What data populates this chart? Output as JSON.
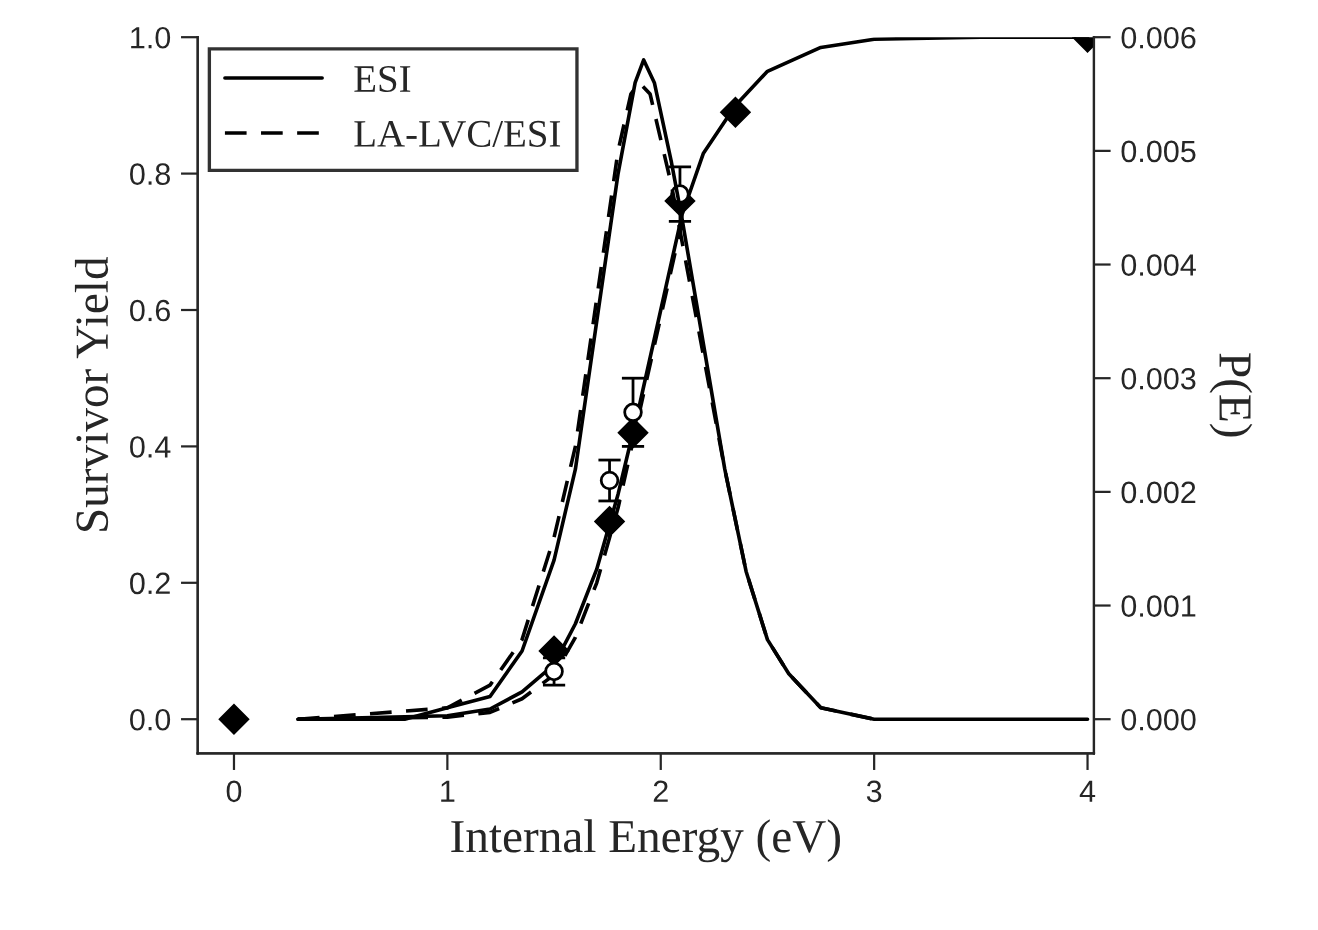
{
  "chart_data": {
    "type": "line",
    "xlabel": "Internal Energy (eV)",
    "ylabel": "Survivor Yield",
    "y2label": "P(E)",
    "xlim": [
      -0.17,
      4.03
    ],
    "xticks": [
      0,
      1,
      2,
      3,
      4
    ],
    "ylim": [
      -0.05,
      1.0
    ],
    "yticks": [
      {
        "value": 0,
        "label": "0.0"
      },
      {
        "value": 0.2,
        "label": "0.2"
      },
      {
        "value": 0.4,
        "label": "0.4"
      },
      {
        "value": 0.6,
        "label": "0.6"
      },
      {
        "value": 0.8,
        "label": "0.8"
      },
      {
        "value": 1,
        "label": "1.0"
      }
    ],
    "y2lim": [
      -0.0003,
      0.006
    ],
    "y2ticks": [
      {
        "value": 0,
        "label": "0.000"
      },
      {
        "value": 0.001,
        "label": "0.001"
      },
      {
        "value": 0.002,
        "label": "0.002"
      },
      {
        "value": 0.003,
        "label": "0.003"
      },
      {
        "value": 0.004,
        "label": "0.004"
      },
      {
        "value": 0.005,
        "label": "0.005"
      },
      {
        "value": 0.006,
        "label": "0.006"
      }
    ],
    "legend": "top left",
    "grid": false,
    "series": [
      {
        "name": "ESI",
        "axis": "y2",
        "color": "#000000",
        "line_style": "solid",
        "marker": "none",
        "x": [
          0.3,
          0.8,
          1.0,
          1.2,
          1.35,
          1.5,
          1.6,
          1.7,
          1.8,
          1.88,
          1.92,
          1.97,
          2.05,
          2.1,
          2.2,
          2.3,
          2.4,
          2.5,
          2.6,
          2.75,
          3.0,
          4.0
        ],
        "values": [
          0,
          0,
          0.0001,
          0.0002,
          0.0006,
          0.0014,
          0.0022,
          0.0035,
          0.0048,
          0.0056,
          0.0058,
          0.0056,
          0.0049,
          0.0044,
          0.0033,
          0.0022,
          0.0013,
          0.0007,
          0.0004,
          0.0001,
          0,
          0
        ]
      },
      {
        "name": "LA-LVC/ESI",
        "axis": "y2",
        "color": "#000000",
        "line_style": "dashed",
        "marker": "none",
        "x": [
          0.3,
          1.0,
          1.2,
          1.35,
          1.5,
          1.6,
          1.7,
          1.8,
          1.86,
          1.9,
          1.95,
          2.05,
          2.1,
          2.2,
          2.3,
          2.4,
          2.5,
          2.6,
          2.75,
          3.0
        ],
        "values": [
          0,
          0.0001,
          0.0003,
          0.0007,
          0.0016,
          0.0024,
          0.0037,
          0.005,
          0.0055,
          0.0056,
          0.0055,
          0.0047,
          0.0042,
          0.0032,
          0.0022,
          0.0013,
          0.0007,
          0.0004,
          0.0001,
          0
        ]
      },
      {
        "color": "#000000",
        "line_style": "solid",
        "marker": "none",
        "x": [
          0.3,
          1.0,
          1.2,
          1.35,
          1.5,
          1.6,
          1.7,
          1.8,
          1.9,
          2.0,
          2.1,
          2.2,
          2.35,
          2.5,
          2.75,
          3.0,
          3.5,
          4.0
        ],
        "values": [
          0,
          0.005,
          0.015,
          0.04,
          0.08,
          0.14,
          0.22,
          0.33,
          0.46,
          0.6,
          0.74,
          0.83,
          0.9,
          0.95,
          0.985,
          0.997,
          1.0,
          1.0
        ]
      },
      {
        "color": "#000000",
        "line_style": "dashed",
        "marker": "none",
        "x": [
          0.3,
          1.0,
          1.2,
          1.35,
          1.5,
          1.6,
          1.7,
          1.8,
          1.9,
          2.0,
          2.1
        ],
        "values": [
          0,
          0.003,
          0.01,
          0.03,
          0.065,
          0.12,
          0.2,
          0.31,
          0.45,
          0.59,
          0.73
        ]
      },
      {
        "type": "scatter",
        "color": "#000000",
        "marker": "circle",
        "x": [
          1.5,
          1.76,
          1.87,
          2.09
        ],
        "values": [
          0.07,
          0.35,
          0.45,
          0.77
        ],
        "errors": [
          0.02,
          0.03,
          0.05,
          0.04
        ]
      },
      {
        "type": "scatter",
        "color": "#000000",
        "marker": "diamond",
        "x": [
          0,
          1.5,
          1.76,
          1.87,
          2.09,
          2.35,
          4.0
        ],
        "values": [
          0,
          0.1,
          0.29,
          0.42,
          0.76,
          0.89,
          1.0
        ]
      }
    ]
  }
}
